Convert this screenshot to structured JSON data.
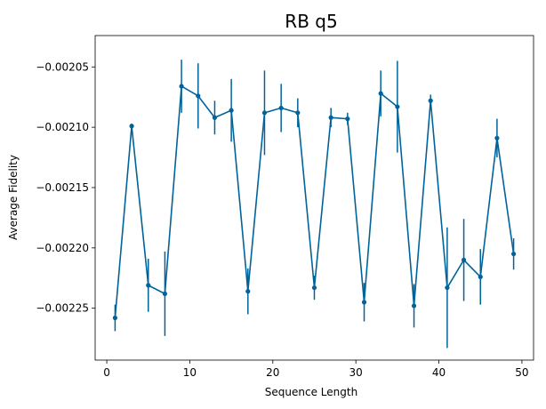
{
  "chart_data": {
    "type": "line",
    "title": "RB q5",
    "xlabel": "Sequence Length",
    "ylabel": "Average Fidelity",
    "xlim": [
      -1.4,
      51.4
    ],
    "ylim": [
      -0.002293,
      -0.002024
    ],
    "xticks": [
      0,
      10,
      20,
      30,
      40,
      50
    ],
    "yticks": [
      -0.00225,
      -0.0022,
      -0.00215,
      -0.0021,
      -0.00205
    ],
    "ytick_labels": [
      "−0.00225",
      "−0.00220",
      "−0.00215",
      "−0.00210",
      "−0.00205"
    ],
    "grid": false,
    "series_color": "#00639a",
    "x": [
      1,
      3,
      5,
      7,
      9,
      11,
      13,
      15,
      17,
      19,
      21,
      23,
      25,
      27,
      29,
      31,
      33,
      35,
      37,
      39,
      41,
      43,
      45,
      47,
      49
    ],
    "y": [
      -0.002258,
      -0.002099,
      -0.002231,
      -0.002238,
      -0.002066,
      -0.002074,
      -0.002092,
      -0.002086,
      -0.002236,
      -0.002088,
      -0.002084,
      -0.002088,
      -0.002233,
      -0.002092,
      -0.002093,
      -0.002245,
      -0.002072,
      -0.002083,
      -0.002248,
      -0.002078,
      -0.002233,
      -0.00221,
      -0.002224,
      -0.002109,
      -0.002205
    ],
    "yerr": [
      1.1e-05,
      2e-06,
      2.2e-05,
      3.5e-05,
      2.2e-05,
      2.7e-05,
      1.4e-05,
      2.6e-05,
      1.9e-05,
      3.5e-05,
      2e-05,
      1.2e-05,
      1e-05,
      8e-06,
      5e-06,
      1.6e-05,
      1.9e-05,
      3.8e-05,
      1.8e-05,
      5e-06,
      5e-05,
      3.4e-05,
      2.3e-05,
      1.6e-05,
      1.3e-05
    ]
  }
}
